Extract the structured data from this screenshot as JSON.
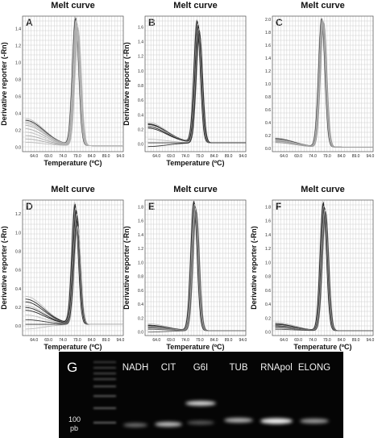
{
  "chart_data": [
    {
      "type": "line",
      "panel": "A",
      "title": "Melt curve",
      "xlabel": "Temperature (ºC)",
      "ylabel": "Derivative reporter (-Rn)",
      "xticks": [
        "64.0",
        "69.0",
        "74.0",
        "79.0",
        "84.0",
        "89.0",
        "94.0"
      ],
      "yticks": [
        "0.0",
        "0.2",
        "0.4",
        "0.6",
        "0.8",
        "1.0",
        "1.2",
        "1.4"
      ],
      "xlim": [
        60,
        95
      ],
      "ylim": [
        -0.05,
        1.55
      ],
      "peak_temperature": 78.9,
      "series_count": 10,
      "peak_heights": [
        1.52,
        1.5,
        1.48,
        1.47,
        1.45,
        1.44,
        1.42,
        1.4,
        1.38,
        1.36
      ],
      "baseline_at_61": [
        0.32,
        0.3,
        0.28,
        0.26,
        0.24,
        0.2,
        0.16,
        0.12,
        0.08,
        0.04
      ],
      "series_color": "#aaaaaa",
      "color_mix": 0.2
    },
    {
      "type": "line",
      "panel": "B",
      "title": "Melt curve",
      "xlabel": "Temperature (ºC)",
      "ylabel": "Derivative reporter (-Rn)",
      "xticks": [
        "64.0",
        "69.0",
        "74.0",
        "79.0",
        "84.0",
        "89.0",
        "94.0"
      ],
      "yticks": [
        "0.0",
        "0.2",
        "0.4",
        "0.6",
        "0.8",
        "1.0",
        "1.2",
        "1.4",
        "1.6"
      ],
      "xlim": [
        60,
        95
      ],
      "ylim": [
        -0.1,
        1.75
      ],
      "peak_temperature": 78.5,
      "series_count": 9,
      "peak_heights": [
        1.68,
        1.66,
        1.64,
        1.62,
        1.6,
        1.58,
        1.56,
        1.54,
        1.5
      ],
      "baseline_at_61": [
        0.28,
        0.26,
        0.25,
        0.24,
        0.22,
        0.2,
        0.05,
        0.0,
        -0.05
      ],
      "series_color": "#3a3a3a",
      "color_mix": 0.7
    },
    {
      "type": "line",
      "panel": "C",
      "title": "Melt curve",
      "xlabel": "",
      "ylabel": "",
      "xticks": [
        "64.0",
        "69.0",
        "74.0",
        "79.0",
        "84.0",
        "89.0",
        "94.0"
      ],
      "yticks": [
        "0.0",
        "0.2",
        "0.4",
        "0.6",
        "0.8",
        "1.0",
        "1.2",
        "1.4",
        "1.6",
        "1.8",
        "2.0"
      ],
      "xlim": [
        60,
        95
      ],
      "ylim": [
        -0.05,
        2.05
      ],
      "peak_temperature": 77.5,
      "series_count": 8,
      "peak_heights": [
        2.0,
        1.99,
        1.98,
        1.97,
        1.96,
        1.95,
        1.94,
        1.93
      ],
      "baseline_at_61": [
        0.14,
        0.13,
        0.12,
        0.11,
        0.1,
        0.09,
        0.08,
        0.07
      ],
      "series_color": "#999999",
      "color_mix": 0.25
    },
    {
      "type": "line",
      "panel": "D",
      "title": "Melt curve",
      "xlabel": "Temperature (ºC)",
      "ylabel": "Derivative reporter (-Rn)",
      "xticks": [
        "64.0",
        "69.0",
        "74.0",
        "79.0",
        "84.0",
        "89.0",
        "94.0"
      ],
      "yticks": [
        "0.0",
        "0.2",
        "0.4",
        "0.6",
        "0.8",
        "1.0",
        "1.2"
      ],
      "xlim": [
        60,
        95
      ],
      "ylim": [
        -0.1,
        1.35
      ],
      "peak_temperature": 78.7,
      "series_count": 10,
      "peak_heights": [
        1.3,
        1.28,
        1.26,
        1.24,
        1.22,
        1.2,
        1.18,
        1.16,
        1.1,
        1.05
      ],
      "baseline_at_61": [
        0.3,
        0.27,
        0.24,
        0.2,
        0.18,
        0.15,
        0.1,
        0.05,
        0.0,
        -0.05
      ],
      "series_color": "#3a3a3a",
      "color_mix": 0.6
    },
    {
      "type": "line",
      "panel": "E",
      "title": "Melt curve",
      "xlabel": "Temperature (ºC)",
      "ylabel": "Derivative reporter (-Rn)",
      "xticks": [
        "64.0",
        "69.0",
        "74.0",
        "79.0",
        "84.0",
        "89.0",
        "94.0"
      ],
      "yticks": [
        "0.0",
        "0.2",
        "0.4",
        "0.6",
        "0.8",
        "1.0",
        "1.2",
        "1.4",
        "1.6",
        "1.8"
      ],
      "xlim": [
        60,
        95
      ],
      "ylim": [
        -0.05,
        1.9
      ],
      "peak_temperature": 77.4,
      "series_count": 9,
      "peak_heights": [
        1.88,
        1.86,
        1.84,
        1.82,
        1.8,
        1.78,
        1.76,
        1.74,
        1.72
      ],
      "baseline_at_61": [
        0.1,
        0.08,
        0.07,
        0.06,
        0.05,
        0.04,
        0.03,
        0.02,
        -0.02
      ],
      "series_color": "#666666",
      "color_mix": 0.5
    },
    {
      "type": "line",
      "panel": "F",
      "title": "Melt curve",
      "xlabel": "Temperature (ºC)",
      "ylabel": "Derivative reporter (-Rn)",
      "xticks": [
        "64.0",
        "69.0",
        "74.0",
        "79.0",
        "84.0",
        "89.0",
        "94.0"
      ],
      "yticks": [
        "0.0",
        "0.2",
        "0.4",
        "0.6",
        "0.8",
        "1.0",
        "1.2",
        "1.4",
        "1.6",
        "1.8"
      ],
      "xlim": [
        60,
        95
      ],
      "ylim": [
        -0.05,
        1.9
      ],
      "peak_temperature": 78.1,
      "series_count": 9,
      "peak_heights": [
        1.86,
        1.84,
        1.82,
        1.8,
        1.78,
        1.76,
        1.74,
        1.72,
        1.7
      ],
      "baseline_at_61": [
        0.12,
        0.1,
        0.09,
        0.08,
        0.07,
        0.06,
        0.05,
        0.04,
        0.02
      ],
      "series_color": "#555555",
      "color_mix": 0.55
    }
  ],
  "gel": {
    "letter": "G",
    "lanes": [
      "NADH",
      "CIT",
      "G6I",
      "TUB",
      "RNApol",
      "ELONG"
    ],
    "marker_label_value": "100",
    "marker_label_unit": "pb",
    "background_color": "#050505",
    "band_color": "#ffffff"
  }
}
